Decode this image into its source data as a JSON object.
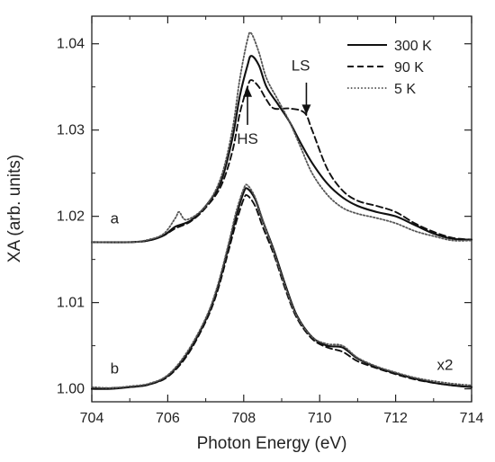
{
  "chart_data": {
    "type": "line",
    "title": "",
    "xlabel": "Photon Energy (eV)",
    "ylabel": "XA (arb. units)",
    "xlim": [
      704,
      714
    ],
    "ylim": [
      0.9985,
      1.0432
    ],
    "xticks": [
      704,
      706,
      708,
      710,
      712,
      714
    ],
    "xtick_labels": [
      "704",
      "706",
      "708",
      "710",
      "712",
      "714"
    ],
    "yticks": [
      1.0,
      1.01,
      1.02,
      1.03,
      1.04
    ],
    "ytick_labels": [
      "1.00",
      "1.01",
      "1.02",
      "1.03",
      "1.04"
    ],
    "grid": false,
    "legend_position": "top-right",
    "series": [
      {
        "name": "300 K",
        "style": "solid",
        "color": "#111111",
        "group": "a",
        "points": [
          [
            704,
            1.017
          ],
          [
            705,
            1.017
          ],
          [
            705.5,
            1.0172
          ],
          [
            705.9,
            1.0178
          ],
          [
            706.2,
            1.0188
          ],
          [
            706.6,
            1.0195
          ],
          [
            707,
            1.0212
          ],
          [
            707.4,
            1.024
          ],
          [
            707.7,
            1.029
          ],
          [
            707.9,
            1.034
          ],
          [
            708.1,
            1.0375
          ],
          [
            708.2,
            1.0386
          ],
          [
            708.4,
            1.0375
          ],
          [
            708.6,
            1.035
          ],
          [
            708.9,
            1.033
          ],
          [
            709.2,
            1.031
          ],
          [
            709.5,
            1.0285
          ],
          [
            709.8,
            1.0262
          ],
          [
            710.2,
            1.0238
          ],
          [
            710.6,
            1.0222
          ],
          [
            711,
            1.0212
          ],
          [
            711.5,
            1.0205
          ],
          [
            712,
            1.02
          ],
          [
            712.5,
            1.019
          ],
          [
            713,
            1.018
          ],
          [
            713.5,
            1.0174
          ],
          [
            714,
            1.0173
          ]
        ]
      },
      {
        "name": "90 K",
        "style": "dashed",
        "color": "#111111",
        "group": "a",
        "points": [
          [
            704,
            1.017
          ],
          [
            705,
            1.017
          ],
          [
            705.5,
            1.0172
          ],
          [
            705.9,
            1.0178
          ],
          [
            706.2,
            1.0186
          ],
          [
            706.6,
            1.0194
          ],
          [
            707,
            1.021
          ],
          [
            707.4,
            1.0235
          ],
          [
            707.7,
            1.0275
          ],
          [
            707.9,
            1.032
          ],
          [
            708.1,
            1.035
          ],
          [
            708.2,
            1.0358
          ],
          [
            708.4,
            1.035
          ],
          [
            708.6,
            1.0335
          ],
          [
            708.8,
            1.0325
          ],
          [
            709.2,
            1.0325
          ],
          [
            709.6,
            1.032
          ],
          [
            709.8,
            1.03
          ],
          [
            710.2,
            1.0255
          ],
          [
            710.6,
            1.023
          ],
          [
            711,
            1.0218
          ],
          [
            711.5,
            1.0212
          ],
          [
            712,
            1.0205
          ],
          [
            712.5,
            1.0192
          ],
          [
            713,
            1.0182
          ],
          [
            713.5,
            1.0175
          ],
          [
            714,
            1.0173
          ]
        ]
      },
      {
        "name": "5 K",
        "style": "dotted",
        "color": "#555555",
        "group": "a",
        "points": [
          [
            704,
            1.017
          ],
          [
            705,
            1.017
          ],
          [
            705.5,
            1.0173
          ],
          [
            705.9,
            1.018
          ],
          [
            706.2,
            1.0198
          ],
          [
            706.3,
            1.0205
          ],
          [
            706.5,
            1.0196
          ],
          [
            707,
            1.0212
          ],
          [
            707.4,
            1.0245
          ],
          [
            707.7,
            1.03
          ],
          [
            707.9,
            1.036
          ],
          [
            708.1,
            1.0405
          ],
          [
            708.2,
            1.0412
          ],
          [
            708.4,
            1.039
          ],
          [
            708.6,
            1.036
          ],
          [
            708.9,
            1.0335
          ],
          [
            709.2,
            1.031
          ],
          [
            709.5,
            1.028
          ],
          [
            709.8,
            1.025
          ],
          [
            710.2,
            1.0225
          ],
          [
            710.6,
            1.021
          ],
          [
            711,
            1.0203
          ],
          [
            711.5,
            1.0198
          ],
          [
            712,
            1.0192
          ],
          [
            712.5,
            1.0183
          ],
          [
            713,
            1.0177
          ],
          [
            713.5,
            1.0172
          ],
          [
            714,
            1.0172
          ]
        ]
      },
      {
        "name": "300 K",
        "style": "solid",
        "color": "#111111",
        "group": "b",
        "points": [
          [
            704,
            1.0
          ],
          [
            704.5,
            1.0
          ],
          [
            705,
            1.0002
          ],
          [
            705.5,
            1.0005
          ],
          [
            706,
            1.0015
          ],
          [
            706.5,
            1.004
          ],
          [
            707,
            1.008
          ],
          [
            707.3,
            1.0115
          ],
          [
            707.6,
            1.0165
          ],
          [
            707.8,
            1.02
          ],
          [
            708,
            1.0228
          ],
          [
            708.1,
            1.0232
          ],
          [
            708.3,
            1.022
          ],
          [
            708.5,
            1.0195
          ],
          [
            708.8,
            1.016
          ],
          [
            709.1,
            1.012
          ],
          [
            709.4,
            1.0085
          ],
          [
            709.8,
            1.006
          ],
          [
            710.2,
            1.005
          ],
          [
            710.6,
            1.0048
          ],
          [
            711,
            1.0035
          ],
          [
            711.5,
            1.0025
          ],
          [
            712,
            1.0018
          ],
          [
            712.5,
            1.0012
          ],
          [
            713,
            1.0007
          ],
          [
            713.5,
            1.0004
          ],
          [
            714,
            1.0002
          ]
        ]
      },
      {
        "name": "90 K",
        "style": "dashed",
        "color": "#111111",
        "group": "b",
        "points": [
          [
            704,
            1.0
          ],
          [
            704.5,
            1.0001
          ],
          [
            705,
            1.0002
          ],
          [
            705.5,
            1.0005
          ],
          [
            706,
            1.0014
          ],
          [
            706.5,
            1.0038
          ],
          [
            707,
            1.0078
          ],
          [
            707.3,
            1.0112
          ],
          [
            707.6,
            1.016
          ],
          [
            707.8,
            1.0193
          ],
          [
            708,
            1.022
          ],
          [
            708.1,
            1.0224
          ],
          [
            708.3,
            1.0212
          ],
          [
            708.5,
            1.0188
          ],
          [
            708.8,
            1.0155
          ],
          [
            709.1,
            1.0115
          ],
          [
            709.4,
            1.0082
          ],
          [
            709.8,
            1.0058
          ],
          [
            710.2,
            1.0048
          ],
          [
            710.6,
            1.0043
          ],
          [
            711,
            1.0032
          ],
          [
            711.5,
            1.0024
          ],
          [
            712,
            1.0017
          ],
          [
            712.5,
            1.0011
          ],
          [
            713,
            1.0007
          ],
          [
            713.5,
            1.0004
          ],
          [
            714,
            1.0002
          ]
        ]
      },
      {
        "name": "5 K",
        "style": "dotted",
        "color": "#555555",
        "group": "b",
        "points": [
          [
            704,
            1.0002
          ],
          [
            704.5,
            1.0001
          ],
          [
            705,
            1.0003
          ],
          [
            705.5,
            1.0006
          ],
          [
            706,
            1.0016
          ],
          [
            706.5,
            1.0042
          ],
          [
            707,
            1.0082
          ],
          [
            707.3,
            1.0118
          ],
          [
            707.6,
            1.0168
          ],
          [
            707.8,
            1.0205
          ],
          [
            708,
            1.0232
          ],
          [
            708.1,
            1.0236
          ],
          [
            708.3,
            1.0222
          ],
          [
            708.5,
            1.0196
          ],
          [
            708.8,
            1.0158
          ],
          [
            709.1,
            1.0118
          ],
          [
            709.4,
            1.0084
          ],
          [
            709.8,
            1.006
          ],
          [
            710.2,
            1.0052
          ],
          [
            710.6,
            1.005
          ],
          [
            711,
            1.0036
          ],
          [
            711.5,
            1.0026
          ],
          [
            712,
            1.0019
          ],
          [
            712.5,
            1.0013
          ],
          [
            713,
            1.0009
          ],
          [
            713.5,
            1.0006
          ],
          [
            714,
            1.0004
          ]
        ]
      }
    ],
    "annotations": [
      {
        "id": "label-a",
        "text": "a",
        "x": 704.6,
        "y": 1.0192
      },
      {
        "id": "label-b",
        "text": "b",
        "x": 704.6,
        "y": 1.0018
      },
      {
        "id": "label-x2",
        "text": "x2",
        "x": 713.3,
        "y": 1.0022
      },
      {
        "id": "label-hs",
        "text": "HS",
        "x": 708.1,
        "y": 1.0284,
        "arrow_tip": [
          708.1,
          1.035
        ],
        "arrow_tail": [
          708.1,
          1.0306
        ]
      },
      {
        "id": "label-ls",
        "text": "LS",
        "x": 709.5,
        "y": 1.0369,
        "arrow_tip": [
          709.65,
          1.0318
        ],
        "arrow_tail": [
          709.65,
          1.0355
        ]
      }
    ]
  }
}
